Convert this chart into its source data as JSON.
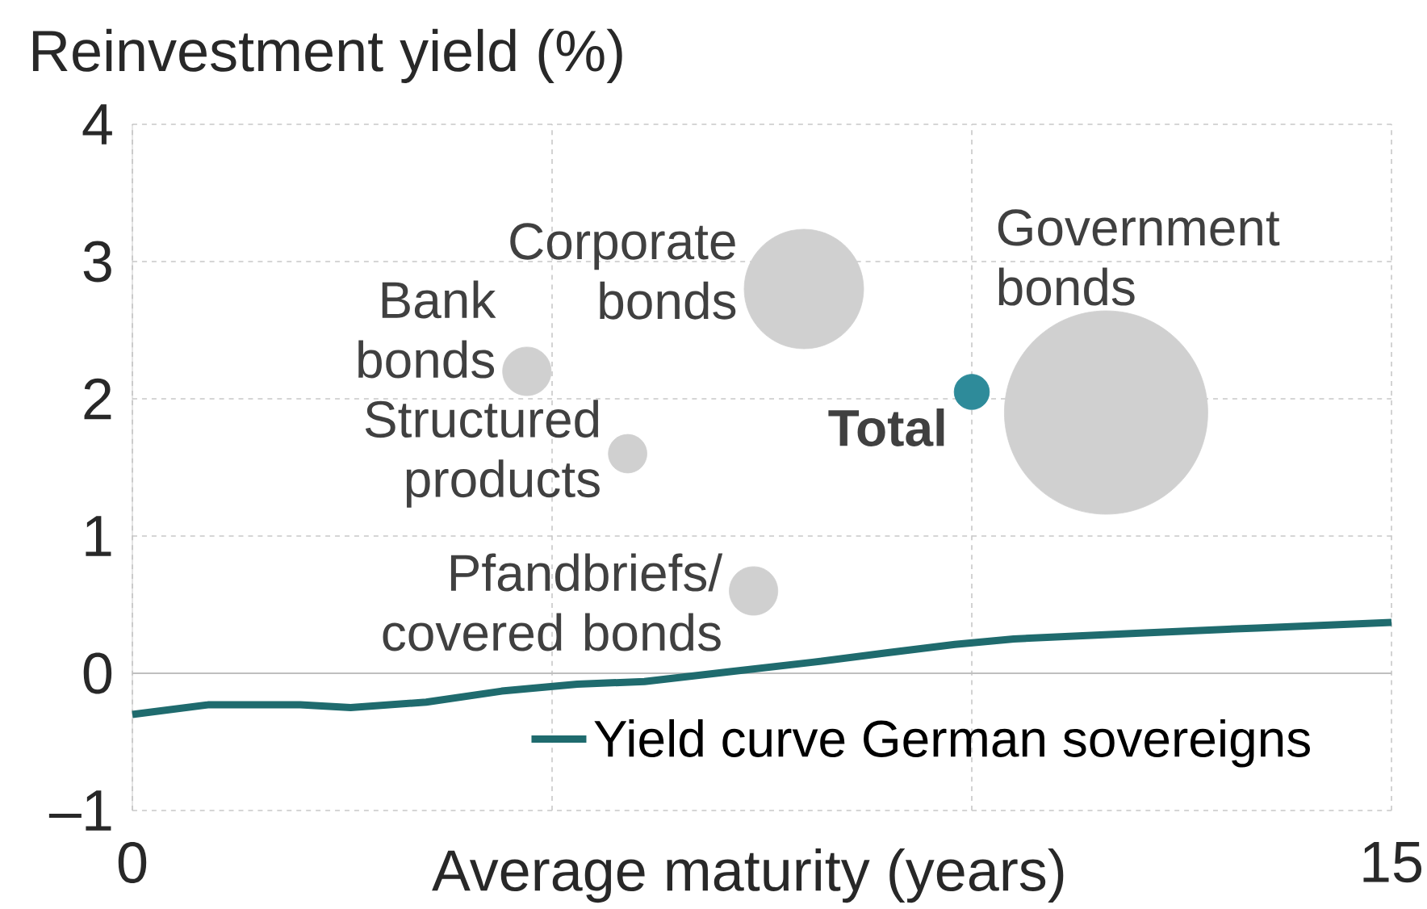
{
  "chart_data": {
    "type": "bubble",
    "xlabel": "Average maturity (years)",
    "ylabel": "Reinvestment yield (%)",
    "xlim": [
      0,
      15
    ],
    "ylim": [
      -1,
      4
    ],
    "xticks": [
      0,
      {
        "value": 5,
        "label": null
      },
      {
        "value": 10,
        "label": null
      },
      15
    ],
    "yticks": [
      {
        "value": -1,
        "label": "–1"
      },
      0,
      1,
      2,
      3,
      4
    ],
    "grid": true,
    "legend": "bottom",
    "series": [
      {
        "name": "Bank bonds",
        "color": "#d0d0d0",
        "x": [
          4.7
        ],
        "values": [
          2.2
        ],
        "sizes": [
          0.057
        ]
      },
      {
        "name": "Corporate bonds",
        "color": "#d0d0d0",
        "x": [
          8.0
        ],
        "values": [
          2.8
        ],
        "sizes": [
          0.345
        ]
      },
      {
        "name": "Government bonds",
        "color": "#d0d0d0",
        "x": [
          11.6
        ],
        "values": [
          1.9
        ],
        "sizes": [
          1
        ]
      },
      {
        "name": "Structured products",
        "color": "#d0d0d0",
        "x": [
          5.9
        ],
        "values": [
          1.6
        ],
        "sizes": [
          0.036
        ]
      },
      {
        "name": "Pfandbriefs/ covered bonds",
        "color": "#d0d0d0",
        "x": [
          7.4
        ],
        "values": [
          0.6
        ],
        "sizes": [
          0.057
        ]
      },
      {
        "name": "**Total**",
        "color": "#2e8b9a",
        "x": [
          10.0
        ],
        "values": [
          2.05
        ],
        "sizes": [
          0.03
        ]
      },
      {
        "name": "Yield curve German sovereigns",
        "type": "line",
        "color": "#1f6b6e",
        "x": [
          0,
          0.9,
          2.0,
          2.6,
          3.5,
          4.4,
          5.3,
          6.1,
          7.1,
          8.1,
          9.0,
          9.8,
          10.5,
          11.9,
          13.4,
          15
        ],
        "values": [
          -0.3,
          -0.23,
          -0.23,
          -0.25,
          -0.21,
          -0.13,
          -0.08,
          -0.06,
          0.01,
          0.08,
          0.15,
          0.21,
          0.25,
          0.29,
          0.33,
          0.37
        ]
      }
    ]
  }
}
